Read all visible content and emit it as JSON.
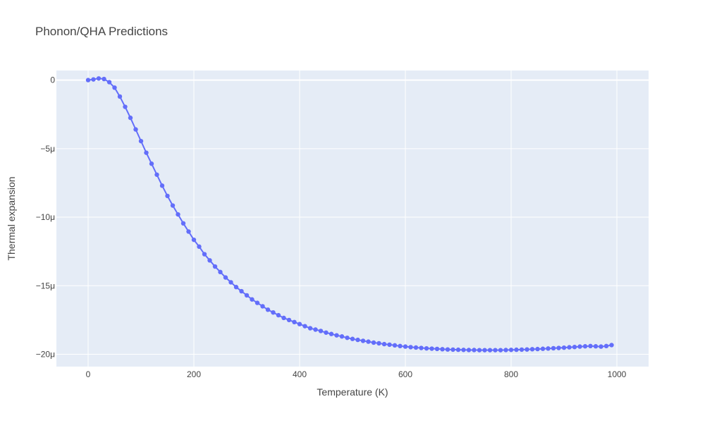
{
  "chart_data": {
    "type": "line",
    "title": "Phonon/QHA Predictions",
    "xlabel": "Temperature (K)",
    "ylabel": "Thermal expansion",
    "xlim": [
      -60,
      1060
    ],
    "ylim": [
      -20.9,
      0.7
    ],
    "x_ticks": [
      0,
      200,
      400,
      600,
      800,
      1000
    ],
    "x_tick_labels": [
      "0",
      "200",
      "400",
      "600",
      "800",
      "1000"
    ],
    "y_ticks": [
      0,
      -5,
      -10,
      -15,
      -20
    ],
    "y_tick_labels": [
      "0",
      "−5μ",
      "−10μ",
      "−15μ",
      "−20μ"
    ],
    "y_unit_multiplier": "1e-6",
    "grid": true,
    "legend": "none",
    "colors": {
      "series": "#636efa",
      "plot_bg": "#e5ecf6",
      "grid": "#ffffff"
    },
    "series": [
      {
        "mode": "lines+markers",
        "x": [
          0,
          10,
          20,
          30,
          40,
          50,
          60,
          70,
          80,
          90,
          100,
          110,
          120,
          130,
          140,
          150,
          160,
          170,
          180,
          190,
          200,
          210,
          220,
          230,
          240,
          250,
          260,
          270,
          280,
          290,
          300,
          310,
          320,
          330,
          340,
          350,
          360,
          370,
          380,
          390,
          400,
          410,
          420,
          430,
          440,
          450,
          460,
          470,
          480,
          490,
          500,
          510,
          520,
          530,
          540,
          550,
          560,
          570,
          580,
          590,
          600,
          610,
          620,
          630,
          640,
          650,
          660,
          670,
          680,
          690,
          700,
          710,
          720,
          730,
          740,
          750,
          760,
          770,
          780,
          790,
          800,
          810,
          820,
          830,
          840,
          850,
          860,
          870,
          880,
          890,
          900,
          910,
          920,
          930,
          940,
          950,
          960,
          970,
          980,
          990
        ],
        "y": [
          0,
          0.05,
          0.12,
          0.08,
          -0.15,
          -0.55,
          -1.2,
          -1.95,
          -2.75,
          -3.6,
          -4.45,
          -5.3,
          -6.1,
          -6.9,
          -7.7,
          -8.45,
          -9.15,
          -9.8,
          -10.45,
          -11.05,
          -11.65,
          -12.15,
          -12.7,
          -13.15,
          -13.6,
          -14.0,
          -14.4,
          -14.75,
          -15.1,
          -15.4,
          -15.7,
          -16.0,
          -16.25,
          -16.5,
          -16.75,
          -16.95,
          -17.15,
          -17.35,
          -17.5,
          -17.65,
          -17.8,
          -17.95,
          -18.1,
          -18.2,
          -18.3,
          -18.42,
          -18.52,
          -18.62,
          -18.7,
          -18.8,
          -18.88,
          -18.95,
          -19.02,
          -19.08,
          -19.15,
          -19.2,
          -19.26,
          -19.3,
          -19.35,
          -19.4,
          -19.44,
          -19.48,
          -19.51,
          -19.54,
          -19.57,
          -19.59,
          -19.61,
          -19.63,
          -19.65,
          -19.66,
          -19.67,
          -19.68,
          -19.69,
          -19.69,
          -19.7,
          -19.7,
          -19.7,
          -19.7,
          -19.7,
          -19.69,
          -19.68,
          -19.67,
          -19.66,
          -19.65,
          -19.63,
          -19.62,
          -19.6,
          -19.58,
          -19.56,
          -19.54,
          -19.52,
          -19.49,
          -19.47,
          -19.44,
          -19.42,
          -19.4,
          -19.42,
          -19.44,
          -19.4,
          -19.33
        ]
      }
    ]
  }
}
